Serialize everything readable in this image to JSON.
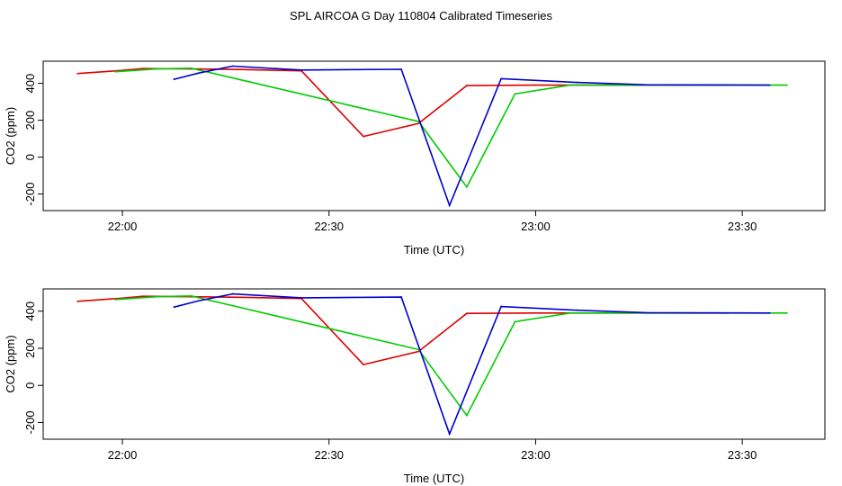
{
  "title": "SPL AIRCOA G  Day 110804  Calibrated Timeseries",
  "colors": {
    "series_1": "#dd0000",
    "series_2": "#00cc00",
    "series_3": "#0000cc"
  },
  "chart_data": [
    {
      "type": "line",
      "xlabel": "Time (UTC)",
      "ylabel": "CO2 (ppm)",
      "x_tick_labels": [
        "22:00",
        "22:30",
        "23:00",
        "23:30"
      ],
      "x_ticks_minutes": [
        0,
        30,
        60,
        90
      ],
      "xlim_minutes": [
        -11.5,
        102
      ],
      "y_ticks": [
        -200,
        0,
        200,
        400
      ],
      "ylim": [
        -290,
        520
      ],
      "grid": false,
      "legend": "none",
      "series": [
        {
          "color": "red",
          "x": [
            -6.5,
            0,
            3,
            10,
            17,
            26,
            35,
            43,
            50,
            60,
            76,
            88
          ],
          "y": [
            453,
            470,
            480,
            478,
            475,
            468,
            112,
            183,
            388,
            390,
            390,
            390
          ]
        },
        {
          "color": "green",
          "x": [
            -1,
            5,
            10,
            43,
            50,
            57,
            65,
            73,
            96.5
          ],
          "y": [
            463,
            478,
            482,
            193,
            -162,
            343,
            390,
            390,
            390
          ]
        },
        {
          "color": "blue",
          "x": [
            7.5,
            11,
            16,
            26,
            40.5,
            47.5,
            55,
            66,
            76,
            94
          ],
          "y": [
            422,
            455,
            493,
            472,
            476,
            -262,
            425,
            405,
            392,
            390
          ]
        }
      ]
    },
    {
      "type": "line",
      "xlabel": "Time (UTC)",
      "ylabel": "CO2 (ppm)",
      "x_tick_labels": [
        "22:00",
        "22:30",
        "23:00",
        "23:30"
      ],
      "x_ticks_minutes": [
        0,
        30,
        60,
        90
      ],
      "xlim_minutes": [
        -11.5,
        102
      ],
      "y_ticks": [
        -200,
        0,
        200,
        400
      ],
      "ylim": [
        -290,
        520
      ],
      "grid": false,
      "legend": "none",
      "series": [
        {
          "color": "red",
          "x": [
            -6.5,
            0,
            3,
            10,
            17,
            26,
            35,
            43,
            50,
            60,
            76,
            88
          ],
          "y": [
            453,
            470,
            480,
            478,
            475,
            468,
            112,
            183,
            388,
            390,
            390,
            390
          ]
        },
        {
          "color": "green",
          "x": [
            -1,
            5,
            10,
            43,
            50,
            57,
            65,
            73,
            96.5
          ],
          "y": [
            463,
            478,
            482,
            193,
            -162,
            343,
            390,
            390,
            390
          ]
        },
        {
          "color": "blue",
          "x": [
            7.5,
            11,
            16,
            26,
            40.5,
            47.5,
            55,
            66,
            76,
            94
          ],
          "y": [
            422,
            455,
            493,
            472,
            476,
            -262,
            425,
            405,
            392,
            390
          ]
        }
      ]
    }
  ]
}
